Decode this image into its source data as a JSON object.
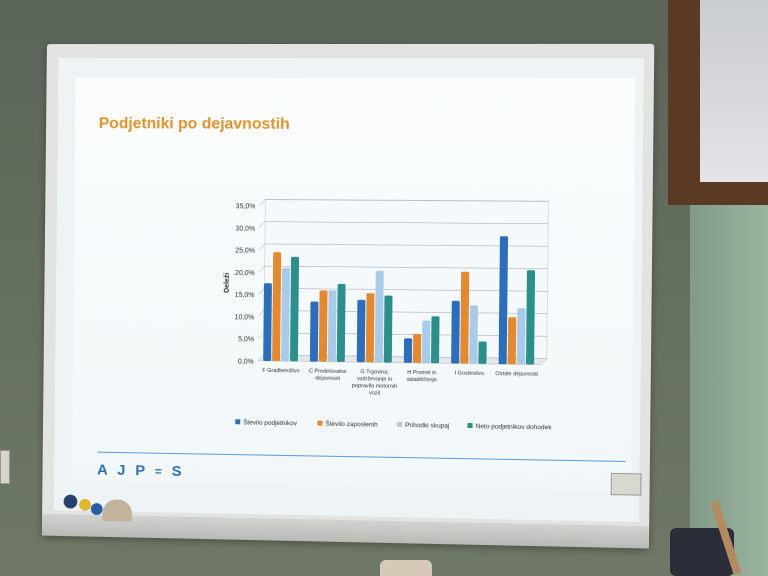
{
  "slide": {
    "title": "Podjetniki po dejavnostih",
    "logo_text": "AJPES"
  },
  "chart_data": {
    "type": "bar",
    "ylabel": "Deleži",
    "ylim": [
      0,
      35
    ],
    "yticks": [
      "0,0%",
      "5,0%",
      "10,0%",
      "15,0%",
      "20,0%",
      "25,0%",
      "30,0%",
      "35,0%"
    ],
    "categories": [
      [
        "F Gradbeništvo"
      ],
      [
        "C Predelovalne",
        "dejavnosti"
      ],
      [
        "G Trgovina;",
        "vzdrževanje in",
        "popravila motornih",
        "vozil"
      ],
      [
        "H Promet in",
        "skladiščenje"
      ],
      [
        "I Gostinstvo"
      ],
      [
        "Ostale dejavnosti"
      ]
    ],
    "series": [
      {
        "name": "Število podjetnikov",
        "color": "#2a6ebd",
        "values": [
          17.5,
          13.5,
          14.0,
          5.5,
          14.0,
          28.5
        ]
      },
      {
        "name": "Število zaposlenih",
        "color": "#e6892c",
        "values": [
          24.5,
          16.0,
          15.5,
          6.5,
          20.5,
          10.5
        ]
      },
      {
        "name": "Prihodki skupaj",
        "color": "#a8cbeb",
        "values": [
          21.0,
          16.0,
          20.5,
          9.5,
          13.0,
          12.5
        ]
      },
      {
        "name": "Neto podjetnikov dohodek",
        "color": "#2b9089",
        "values": [
          23.5,
          17.5,
          15.0,
          10.5,
          5.0,
          21.0
        ]
      }
    ],
    "grid": true,
    "legend": "bottom"
  }
}
